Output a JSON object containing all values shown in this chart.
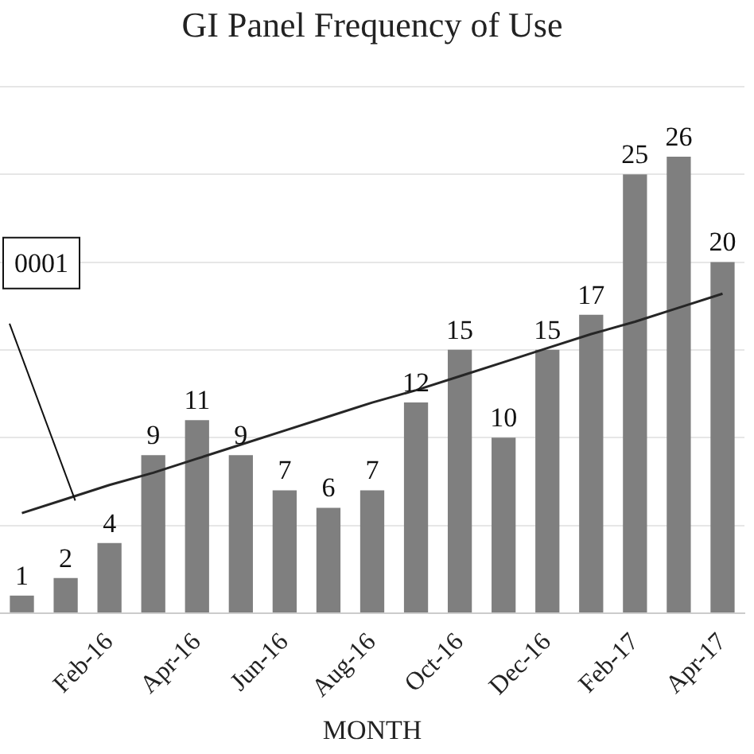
{
  "chart_data": {
    "type": "bar",
    "title": "GI Panel Frequency of Use",
    "xlabel": "MONTH",
    "categories": [
      null,
      null,
      "Feb-16",
      null,
      "Apr-16",
      null,
      "Jun-16",
      null,
      "Aug-16",
      null,
      "Oct-16",
      null,
      "Dec-16",
      null,
      "Feb-17",
      null,
      "Apr-17"
    ],
    "series": [
      {
        "color": "#7f7f7f",
        "values": [
          1,
          2,
          4,
          9,
          11,
          9,
          7,
          6,
          7,
          12,
          15,
          10,
          15,
          17,
          25,
          26,
          20
        ],
        "value_labels": [
          "1",
          "2",
          "4",
          "9",
          "11",
          "9",
          "7",
          "6",
          "7",
          "12",
          "15",
          "10",
          "15",
          "17",
          "25",
          "26",
          "20"
        ]
      },
      {
        "type": "line",
        "color": "#262626",
        "marker": "none",
        "values": [
          5.7,
          6.5,
          7.3,
          8.0,
          8.8,
          9.6,
          10.4,
          11.2,
          12.0,
          12.7,
          13.5,
          14.3,
          15.1,
          15.9,
          16.6,
          17.4,
          18.2
        ]
      }
    ],
    "ylim": [
      0,
      30
    ],
    "yticks": [
      {
        "value": 0,
        "label": null
      },
      {
        "value": 5,
        "label": null
      },
      {
        "value": 10,
        "label": null
      },
      {
        "value": 15,
        "label": null
      },
      {
        "value": 20,
        "label": null
      },
      {
        "value": 25,
        "label": null
      },
      {
        "value": 30,
        "label": null
      }
    ],
    "grid": "y",
    "legend": false,
    "tick_labels": "x",
    "annotations": [
      "0001"
    ]
  }
}
